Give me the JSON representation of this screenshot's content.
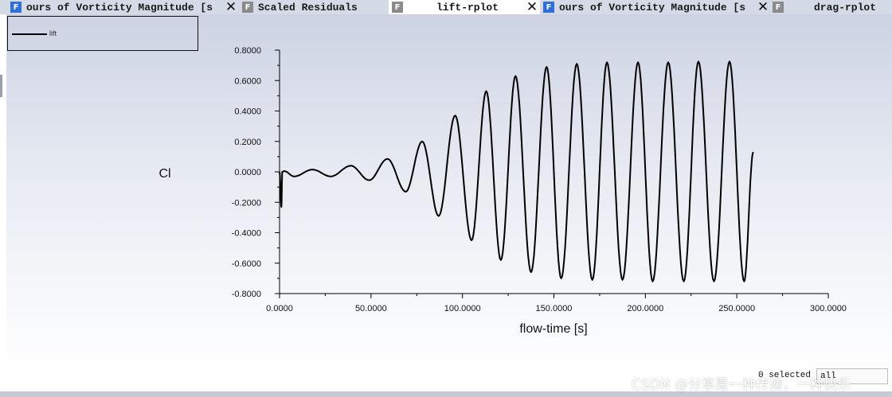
{
  "tabs": [
    {
      "icon": "F",
      "icon_color": "#2f6fd6",
      "label": "ours of Vorticity Magnitude [s",
      "closable": true,
      "active": false
    },
    {
      "icon": "F",
      "icon_color": "#8b8b8b",
      "label": "Scaled Residuals",
      "closable": false,
      "active": false
    },
    {
      "icon": "F",
      "icon_color": "#8b8b8b",
      "label": "lift-rplot",
      "closable": true,
      "active": true
    },
    {
      "icon": "F",
      "icon_color": "#2f6fd6",
      "label": "ours of Vorticity Magnitude [s",
      "closable": true,
      "active": false
    },
    {
      "icon": "F",
      "icon_color": "#8b8b8b",
      "label": "drag-rplot",
      "closable": false,
      "active": false
    }
  ],
  "legend": {
    "entries": [
      {
        "label": "lift",
        "color": "#000000"
      }
    ]
  },
  "chart_data": {
    "type": "line",
    "xlabel": "flow-time [s]",
    "ylabel": "Cl",
    "xlim": [
      0,
      300
    ],
    "ylim": [
      -0.8,
      0.8
    ],
    "xticks": [
      "0.0000",
      "50.0000",
      "100.0000",
      "150.0000",
      "200.0000",
      "250.0000",
      "300.0000"
    ],
    "yticks": [
      "0.8000",
      "0.6000",
      "0.4000",
      "0.2000",
      "0.0000",
      "-0.2000",
      "-0.4000",
      "-0.6000",
      "-0.8000"
    ],
    "grid": false,
    "legend_position": "top-left",
    "series": [
      {
        "name": "lift",
        "color": "#000000",
        "peaks": [
          {
            "x": 0,
            "y": 0.0
          },
          {
            "x": 1,
            "y": -0.23
          },
          {
            "x": 1.5,
            "y": 0.0
          },
          {
            "x": 2.5,
            "y": 0.005
          },
          {
            "x": 8,
            "y": -0.03
          },
          {
            "x": 18,
            "y": 0.015
          },
          {
            "x": 28,
            "y": -0.03
          },
          {
            "x": 39,
            "y": 0.04
          },
          {
            "x": 49,
            "y": -0.055
          },
          {
            "x": 59,
            "y": 0.085
          },
          {
            "x": 69,
            "y": -0.13
          },
          {
            "x": 78,
            "y": 0.2
          },
          {
            "x": 87,
            "y": -0.29
          },
          {
            "x": 96,
            "y": 0.37
          },
          {
            "x": 105,
            "y": -0.45
          },
          {
            "x": 113,
            "y": 0.53
          },
          {
            "x": 121,
            "y": -0.58
          },
          {
            "x": 129,
            "y": 0.63
          },
          {
            "x": 137.5,
            "y": -0.66
          },
          {
            "x": 146,
            "y": 0.69
          },
          {
            "x": 154,
            "y": -0.7
          },
          {
            "x": 162.5,
            "y": 0.71
          },
          {
            "x": 171,
            "y": -0.71
          },
          {
            "x": 179,
            "y": 0.72
          },
          {
            "x": 187.5,
            "y": -0.71
          },
          {
            "x": 196,
            "y": 0.72
          },
          {
            "x": 204,
            "y": -0.72
          },
          {
            "x": 212.5,
            "y": 0.72
          },
          {
            "x": 221,
            "y": -0.72
          },
          {
            "x": 229,
            "y": 0.725
          },
          {
            "x": 237.5,
            "y": -0.72
          },
          {
            "x": 246,
            "y": 0.725
          },
          {
            "x": 254,
            "y": -0.72
          },
          {
            "x": 259,
            "y": 0.13
          }
        ]
      }
    ]
  },
  "footer": {
    "selected_text": "0 selected",
    "button_label": "all"
  },
  "watermark": "CSDN @分享是一种传递，一种快乐"
}
